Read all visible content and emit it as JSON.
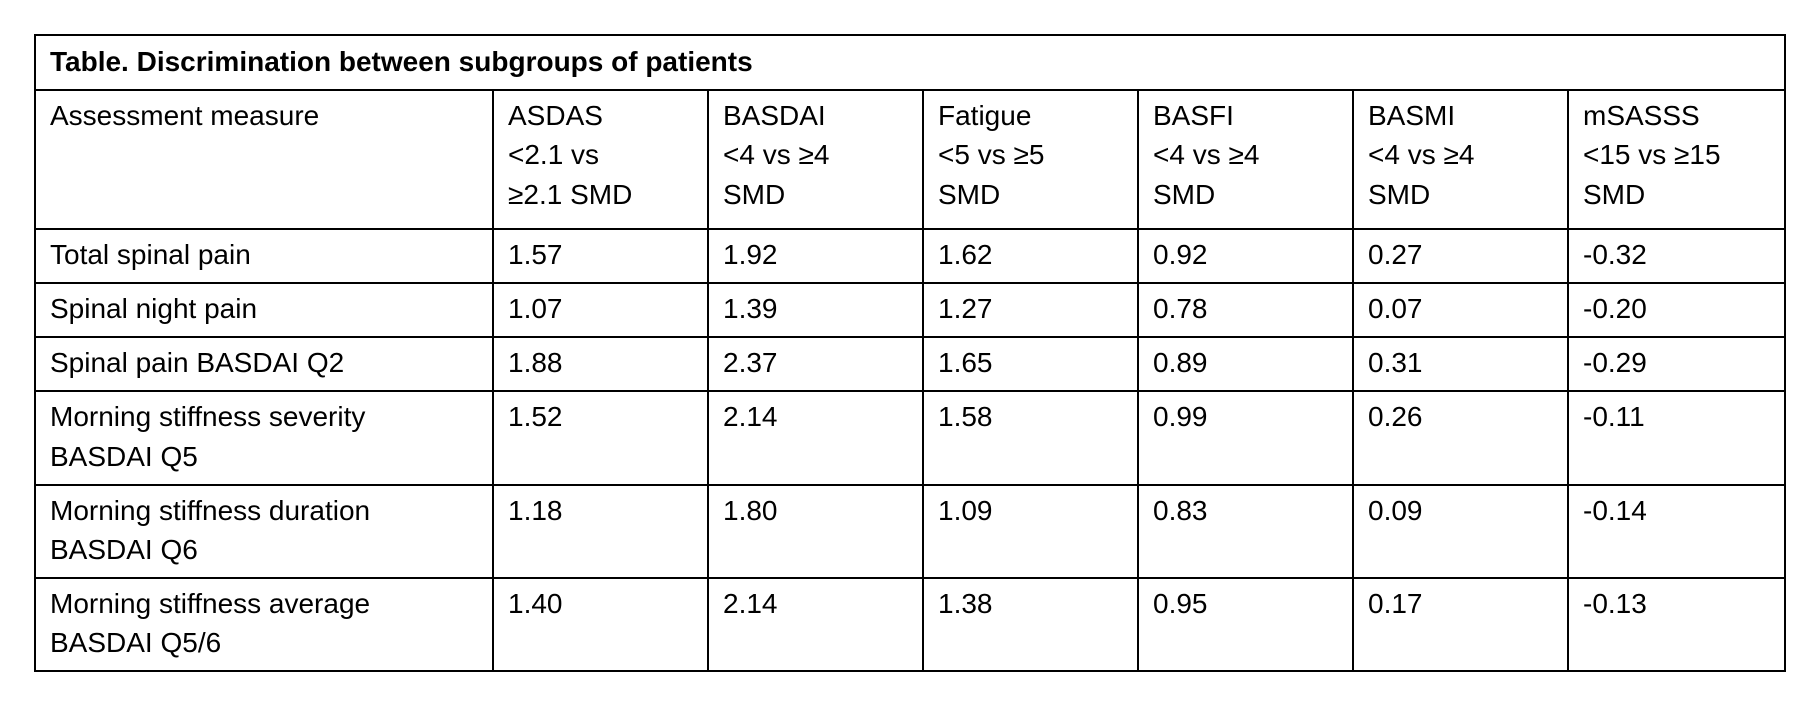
{
  "table": {
    "title": "Table. Discrimination between subgroups of patients",
    "headers": [
      "Assessment measure",
      "ASDAS\n<2.1 vs\n≥2.1  SMD",
      "BASDAI\n<4 vs ≥4\nSMD",
      "Fatigue\n<5 vs ≥5\nSMD",
      "BASFI\n<4 vs ≥4\nSMD",
      "BASMI\n<4 vs ≥4\nSMD",
      "mSASSS\n<15 vs ≥15\nSMD"
    ],
    "rows": [
      {
        "measure": "Total spinal pain",
        "values": [
          "1.57",
          "1.92",
          "1.62",
          "0.92",
          "0.27",
          "-0.32"
        ]
      },
      {
        "measure": "Spinal night pain",
        "values": [
          "1.07",
          "1.39",
          "1.27",
          "0.78",
          "0.07",
          "-0.20"
        ]
      },
      {
        "measure": "Spinal pain BASDAI Q2",
        "values": [
          "1.88",
          "2.37",
          "1.65",
          "0.89",
          "0.31",
          "-0.29"
        ]
      },
      {
        "measure": "Morning stiffness severity\nBASDAI Q5",
        "values": [
          "1.52",
          "2.14",
          "1.58",
          "0.99",
          "0.26",
          "-0.11"
        ]
      },
      {
        "measure": "Morning stiffness duration\nBASDAI Q6",
        "values": [
          "1.18",
          "1.80",
          "1.09",
          "0.83",
          "0.09",
          "-0.14"
        ]
      },
      {
        "measure": "Morning stiffness average\nBASDAI Q5/6",
        "values": [
          "1.40",
          "2.14",
          "1.38",
          "0.95",
          "0.17",
          "-0.13"
        ]
      }
    ]
  }
}
